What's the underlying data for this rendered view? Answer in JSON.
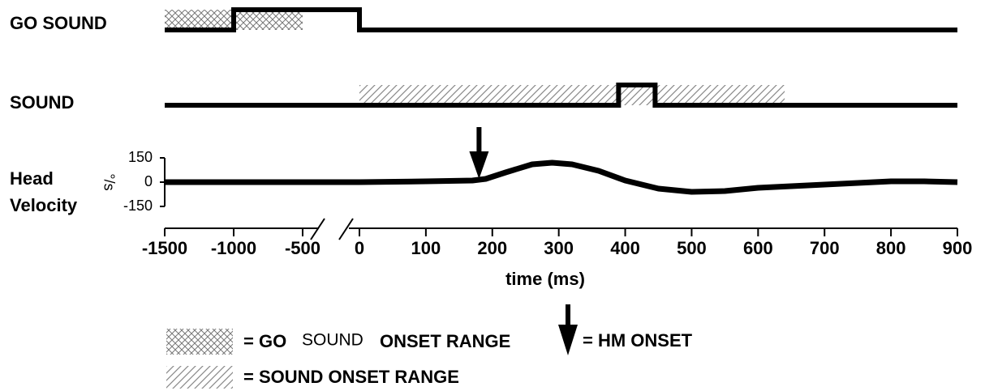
{
  "chart_data": {
    "type": "timing",
    "x_label": "time (ms)",
    "xticks": [
      -1500,
      -1000,
      -500,
      0,
      100,
      200,
      300,
      400,
      500,
      600,
      700,
      800,
      900
    ],
    "go_sound": {
      "name": "GO SOUND",
      "on": -1000,
      "off": 0,
      "onset_range": [
        -1500,
        -500
      ]
    },
    "sound": {
      "name": "SOUND",
      "on": 390,
      "off": 445,
      "onset_range": [
        0,
        640
      ]
    },
    "velocity": {
      "name_lines": [
        "Head",
        "Velocity"
      ],
      "unit": "°/s",
      "ylim": [
        -150,
        150
      ],
      "yticks": [
        150,
        0,
        -150
      ],
      "x": [
        -1500,
        0,
        100,
        170,
        190,
        220,
        260,
        290,
        320,
        360,
        400,
        450,
        500,
        550,
        600,
        700,
        800,
        850,
        900
      ],
      "values": [
        0,
        0,
        5,
        10,
        20,
        60,
        110,
        120,
        110,
        70,
        10,
        -40,
        -60,
        -55,
        -35,
        -15,
        5,
        5,
        0
      ]
    },
    "hm_onset": 180,
    "legend": {
      "go_sound_range": [
        "= GO",
        "SOUND",
        "ONSET RANGE"
      ],
      "hm_onset": "= HM ONSET",
      "sound_range": "= SOUND ONSET RANGE"
    }
  }
}
